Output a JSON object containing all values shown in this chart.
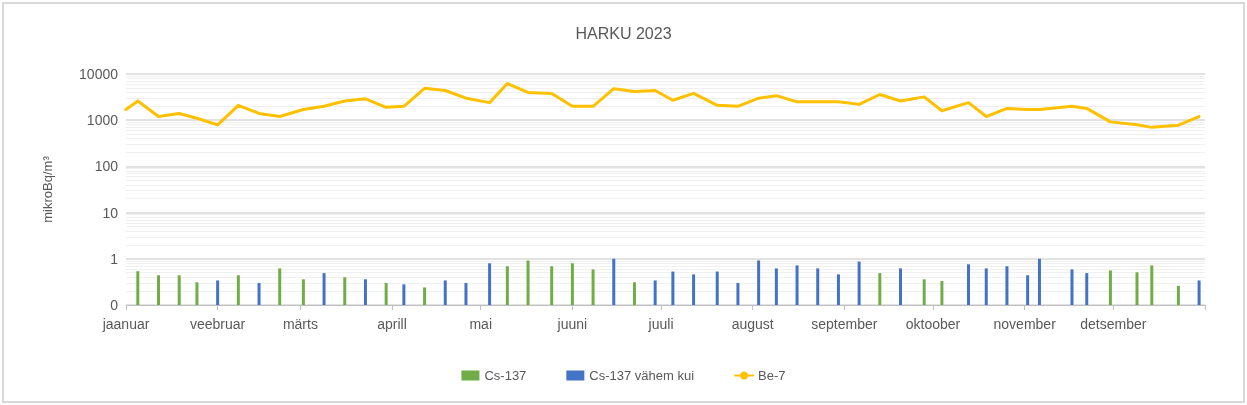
{
  "chart_data": {
    "type": "bar",
    "title": "HARKU 2023",
    "ylabel": "mikroBq/m³",
    "xlim": [
      "2023-01-01",
      "2024-01-01"
    ],
    "xticks": [
      {
        "value": "2023-01-01",
        "label": "jaanuar"
      },
      {
        "value": "2023-02-01",
        "label": "veebruar"
      },
      {
        "value": "2023-03-01",
        "label": "märts"
      },
      {
        "value": "2023-04-01",
        "label": "aprill"
      },
      {
        "value": "2023-05-01",
        "label": "mai"
      },
      {
        "value": "2023-06-01",
        "label": "juuni"
      },
      {
        "value": "2023-07-01",
        "label": "juuli"
      },
      {
        "value": "2023-08-01",
        "label": "august"
      },
      {
        "value": "2023-09-01",
        "label": "september"
      },
      {
        "value": "2023-10-01",
        "label": "oktoober"
      },
      {
        "value": "2023-11-01",
        "label": "november"
      },
      {
        "value": "2023-12-01",
        "label": "detsember"
      },
      {
        "value": "2024-01-01",
        "label": null
      }
    ],
    "ylim": [
      0.1,
      10000
    ],
    "yticks": [
      {
        "value": 0.1,
        "label": "0"
      },
      1,
      10,
      100,
      1000,
      10000
    ],
    "log": true,
    "grid": true,
    "legend": "bottom",
    "marker": "none",
    "series": [
      {
        "name": "Cs-137",
        "color": "#70ad47",
        "x": [
          "2023-01-05",
          "2023-01-12",
          "2023-01-19",
          "2023-01-25",
          "2023-02-08",
          "2023-02-22",
          "2023-03-02",
          "2023-03-16",
          "2023-03-30",
          "2023-04-12",
          "2023-05-10",
          "2023-05-17",
          "2023-05-25",
          "2023-06-01",
          "2023-06-08",
          "2023-06-22",
          "2023-09-13",
          "2023-09-28",
          "2023-10-04",
          "2023-11-30",
          "2023-12-09",
          "2023-12-14",
          "2023-12-23"
        ],
        "values": [
          0.54,
          0.44,
          0.44,
          0.31,
          0.44,
          0.62,
          0.36,
          0.4,
          0.3,
          0.24,
          0.69,
          0.92,
          0.69,
          0.8,
          0.59,
          0.31,
          0.49,
          0.36,
          0.33,
          0.56,
          0.51,
          0.72,
          0.26
        ]
      },
      {
        "name": "Cs-137 vähem kui",
        "color": "#4472c4",
        "x": [
          "2023-02-01",
          "2023-02-15",
          "2023-03-09",
          "2023-03-23",
          "2023-04-05",
          "2023-04-19",
          "2023-04-26",
          "2023-05-04",
          "2023-06-15",
          "2023-06-29",
          "2023-07-05",
          "2023-07-12",
          "2023-07-20",
          "2023-07-27",
          "2023-08-03",
          "2023-08-09",
          "2023-08-16",
          "2023-08-23",
          "2023-08-30",
          "2023-09-06",
          "2023-09-20",
          "2023-10-13",
          "2023-10-19",
          "2023-10-26",
          "2023-11-02",
          "2023-11-06",
          "2023-11-17",
          "2023-11-22",
          "2023-12-30"
        ],
        "values": [
          0.34,
          0.3,
          0.49,
          0.36,
          0.28,
          0.34,
          0.3,
          0.8,
          1.0,
          0.34,
          0.53,
          0.46,
          0.53,
          0.3,
          0.92,
          0.62,
          0.72,
          0.62,
          0.46,
          0.87,
          0.62,
          0.76,
          0.62,
          0.69,
          0.44,
          1.0,
          0.59,
          0.49,
          0.34
        ]
      },
      {
        "name": "Be-7",
        "type": "line",
        "color": "#ffc000",
        "x": [
          "2023-01-01",
          "2023-01-05",
          "2023-01-12",
          "2023-01-19",
          "2023-01-25",
          "2023-02-01",
          "2023-02-08",
          "2023-02-15",
          "2023-02-22",
          "2023-03-02",
          "2023-03-09",
          "2023-03-16",
          "2023-03-23",
          "2023-03-30",
          "2023-04-05",
          "2023-04-12",
          "2023-04-19",
          "2023-04-26",
          "2023-05-04",
          "2023-05-10",
          "2023-05-17",
          "2023-05-25",
          "2023-06-01",
          "2023-06-08",
          "2023-06-15",
          "2023-06-22",
          "2023-06-29",
          "2023-07-05",
          "2023-07-12",
          "2023-07-20",
          "2023-07-27",
          "2023-08-03",
          "2023-08-09",
          "2023-08-16",
          "2023-08-23",
          "2023-08-30",
          "2023-09-06",
          "2023-09-13",
          "2023-09-20",
          "2023-09-28",
          "2023-10-04",
          "2023-10-13",
          "2023-10-19",
          "2023-10-26",
          "2023-11-02",
          "2023-11-06",
          "2023-11-17",
          "2023-11-22",
          "2023-11-30",
          "2023-12-09",
          "2023-12-14",
          "2023-12-23",
          "2023-12-30"
        ],
        "values": [
          1700,
          2600,
          1200,
          1400,
          1100,
          790,
          2100,
          1400,
          1200,
          1700,
          2000,
          2600,
          2900,
          1900,
          2000,
          4900,
          4400,
          3000,
          2400,
          6200,
          4000,
          3800,
          2000,
          2000,
          4800,
          4200,
          4400,
          2700,
          3800,
          2100,
          2000,
          3000,
          3400,
          2500,
          2500,
          2500,
          2200,
          3600,
          2600,
          3200,
          1600,
          2400,
          1200,
          1800,
          1700,
          1700,
          2000,
          1800,
          920,
          800,
          700,
          780,
          1200
        ]
      }
    ]
  }
}
